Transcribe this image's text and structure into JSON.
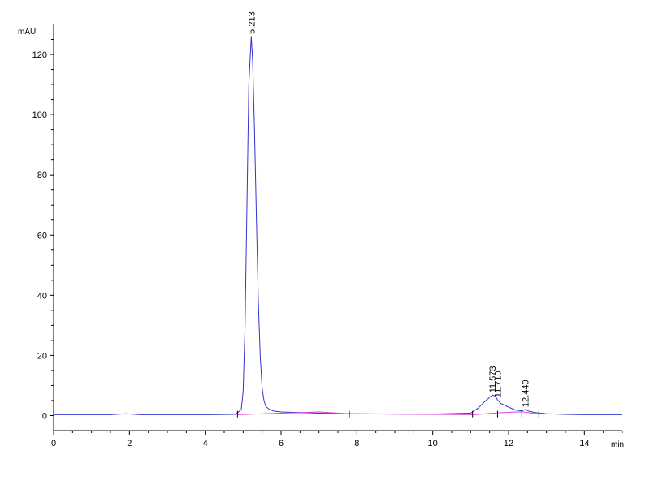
{
  "chart_data": {
    "type": "line",
    "ylabel": "mAU",
    "xlabel": "min",
    "xlim": [
      0,
      15
    ],
    "ylim": [
      -5,
      130
    ],
    "x_ticks": [
      0,
      2,
      4,
      6,
      8,
      10,
      12,
      14
    ],
    "y_ticks": [
      0,
      20,
      40,
      60,
      80,
      100,
      120
    ],
    "colors": {
      "signal": "#3333cc",
      "baseline": "#e040e0",
      "axis": "#000000"
    },
    "series": [
      {
        "role": "signal",
        "x": [
          0,
          1.5,
          1.9,
          2.3,
          4.0,
          4.8,
          4.95,
          5.0,
          5.05,
          5.1,
          5.15,
          5.213,
          5.25,
          5.3,
          5.35,
          5.4,
          5.45,
          5.5,
          5.55,
          5.6,
          5.7,
          5.8,
          6.0,
          6.5,
          7.0,
          8.0,
          9.0,
          10.0,
          11.0,
          11.2,
          11.4,
          11.573,
          11.65,
          11.71,
          11.8,
          12.0,
          12.2,
          12.35,
          12.44,
          12.55,
          12.7,
          13.0,
          13.5,
          14.0,
          14.5,
          15.0
        ],
        "y": [
          0.3,
          0.3,
          0.6,
          0.3,
          0.3,
          0.4,
          2,
          8,
          30,
          70,
          110,
          126,
          118,
          95,
          65,
          38,
          20,
          9,
          5,
          3,
          2,
          1.5,
          1.2,
          1.0,
          0.8,
          0.6,
          0.5,
          0.5,
          0.8,
          2.5,
          5,
          6.8,
          6.5,
          5.2,
          4,
          2.8,
          1.8,
          1.6,
          2.0,
          1.4,
          1.0,
          0.6,
          0.4,
          0.3,
          0.3,
          0.3
        ]
      },
      {
        "role": "baseline",
        "x": [
          4.85,
          6.0,
          7.0,
          7.8,
          11.1,
          11.71,
          12.35,
          12.8
        ],
        "y": [
          0.3,
          0.8,
          1.2,
          0.6,
          0.3,
          0.9,
          1.3,
          0.5
        ]
      }
    ],
    "peaks": [
      {
        "rt": "5.213",
        "x": 5.213,
        "y": 126
      },
      {
        "rt": "11.573",
        "x": 11.573,
        "y": 6.8
      },
      {
        "rt": "11.710",
        "x": 11.71,
        "y": 5.2
      },
      {
        "rt": "12.440",
        "x": 12.44,
        "y": 2.0
      }
    ],
    "integration_markers": [
      4.85,
      7.8,
      11.05,
      11.71,
      12.35,
      12.8
    ]
  }
}
